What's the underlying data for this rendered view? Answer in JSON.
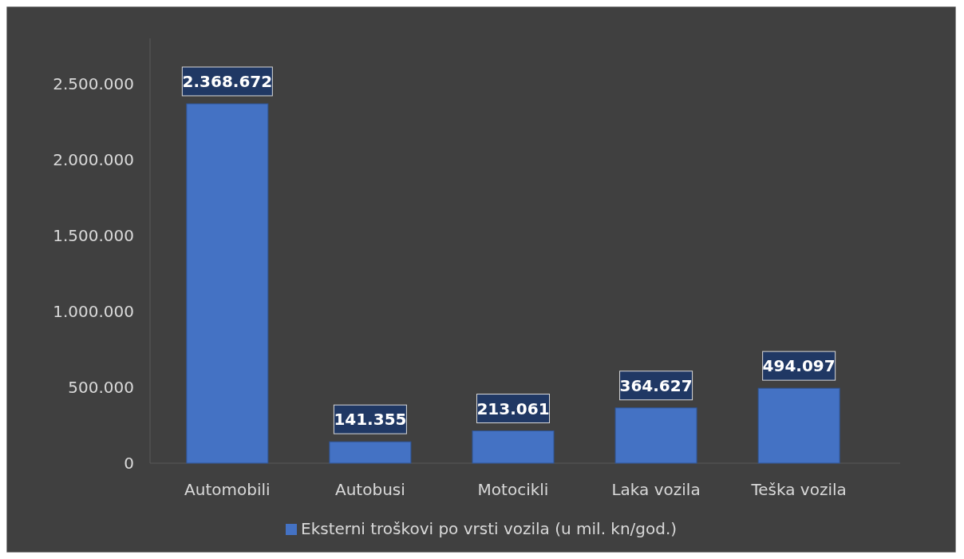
{
  "chart_data": {
    "type": "bar",
    "categories": [
      "Automobili",
      "Autobusi",
      "Motocikli",
      "Laka vozila",
      "Teška vozila"
    ],
    "series": [
      {
        "name": "Eksterni troškovi po vrsti vozila (u mil. kn/god.)",
        "color": "#4472c4",
        "values": [
          2368672,
          141355,
          213061,
          364627,
          494097
        ],
        "value_labels": [
          "2.368.672",
          "141.355",
          "213.061",
          "364.627",
          "494.097"
        ]
      }
    ],
    "ylim": [
      0,
      2800000
    ],
    "yticks": [
      {
        "value": 0,
        "label": "0"
      },
      {
        "value": 500000,
        "label": "500.000"
      },
      {
        "value": 1000000,
        "label": "1.000.000"
      },
      {
        "value": 1500000,
        "label": "1.500.000"
      },
      {
        "value": 2000000,
        "label": "2.000.000"
      },
      {
        "value": 2500000,
        "label": "2.500.000"
      }
    ],
    "grid": false,
    "legend": "bottom"
  }
}
